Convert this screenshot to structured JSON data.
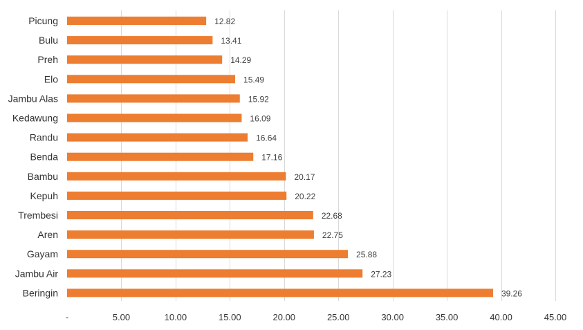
{
  "chart_data": {
    "type": "bar",
    "orientation": "horizontal",
    "categories": [
      "Picung",
      "Bulu",
      "Preh",
      "Elo",
      "Jambu Alas",
      "Kedawung",
      "Randu",
      "Benda",
      "Bambu",
      "Kepuh",
      "Trembesi",
      "Aren",
      "Gayam",
      "Jambu Air",
      "Beringin"
    ],
    "values": [
      12.82,
      13.41,
      14.29,
      15.49,
      15.92,
      16.09,
      16.64,
      17.16,
      20.17,
      20.22,
      22.68,
      22.75,
      25.88,
      27.23,
      39.26
    ],
    "value_labels": [
      "12.82",
      "13.41",
      "14.29",
      "15.49",
      "15.92",
      "16.09",
      "16.64",
      "17.16",
      "20.17",
      "20.22",
      "22.68",
      "22.75",
      "25.88",
      "27.23",
      "39.26"
    ],
    "x_ticks": [
      0,
      5,
      10,
      15,
      20,
      25,
      30,
      35,
      40,
      45
    ],
    "x_tick_labels": [
      "-",
      "5.00",
      "10.00",
      "15.00",
      "20.00",
      "25.00",
      "30.00",
      "35.00",
      "40.00",
      "45.00"
    ],
    "xlim": [
      0,
      45
    ],
    "title": "",
    "xlabel": "",
    "ylabel": "",
    "grid": "vertical",
    "legend": "none",
    "bar_color": "#ED7D31"
  }
}
